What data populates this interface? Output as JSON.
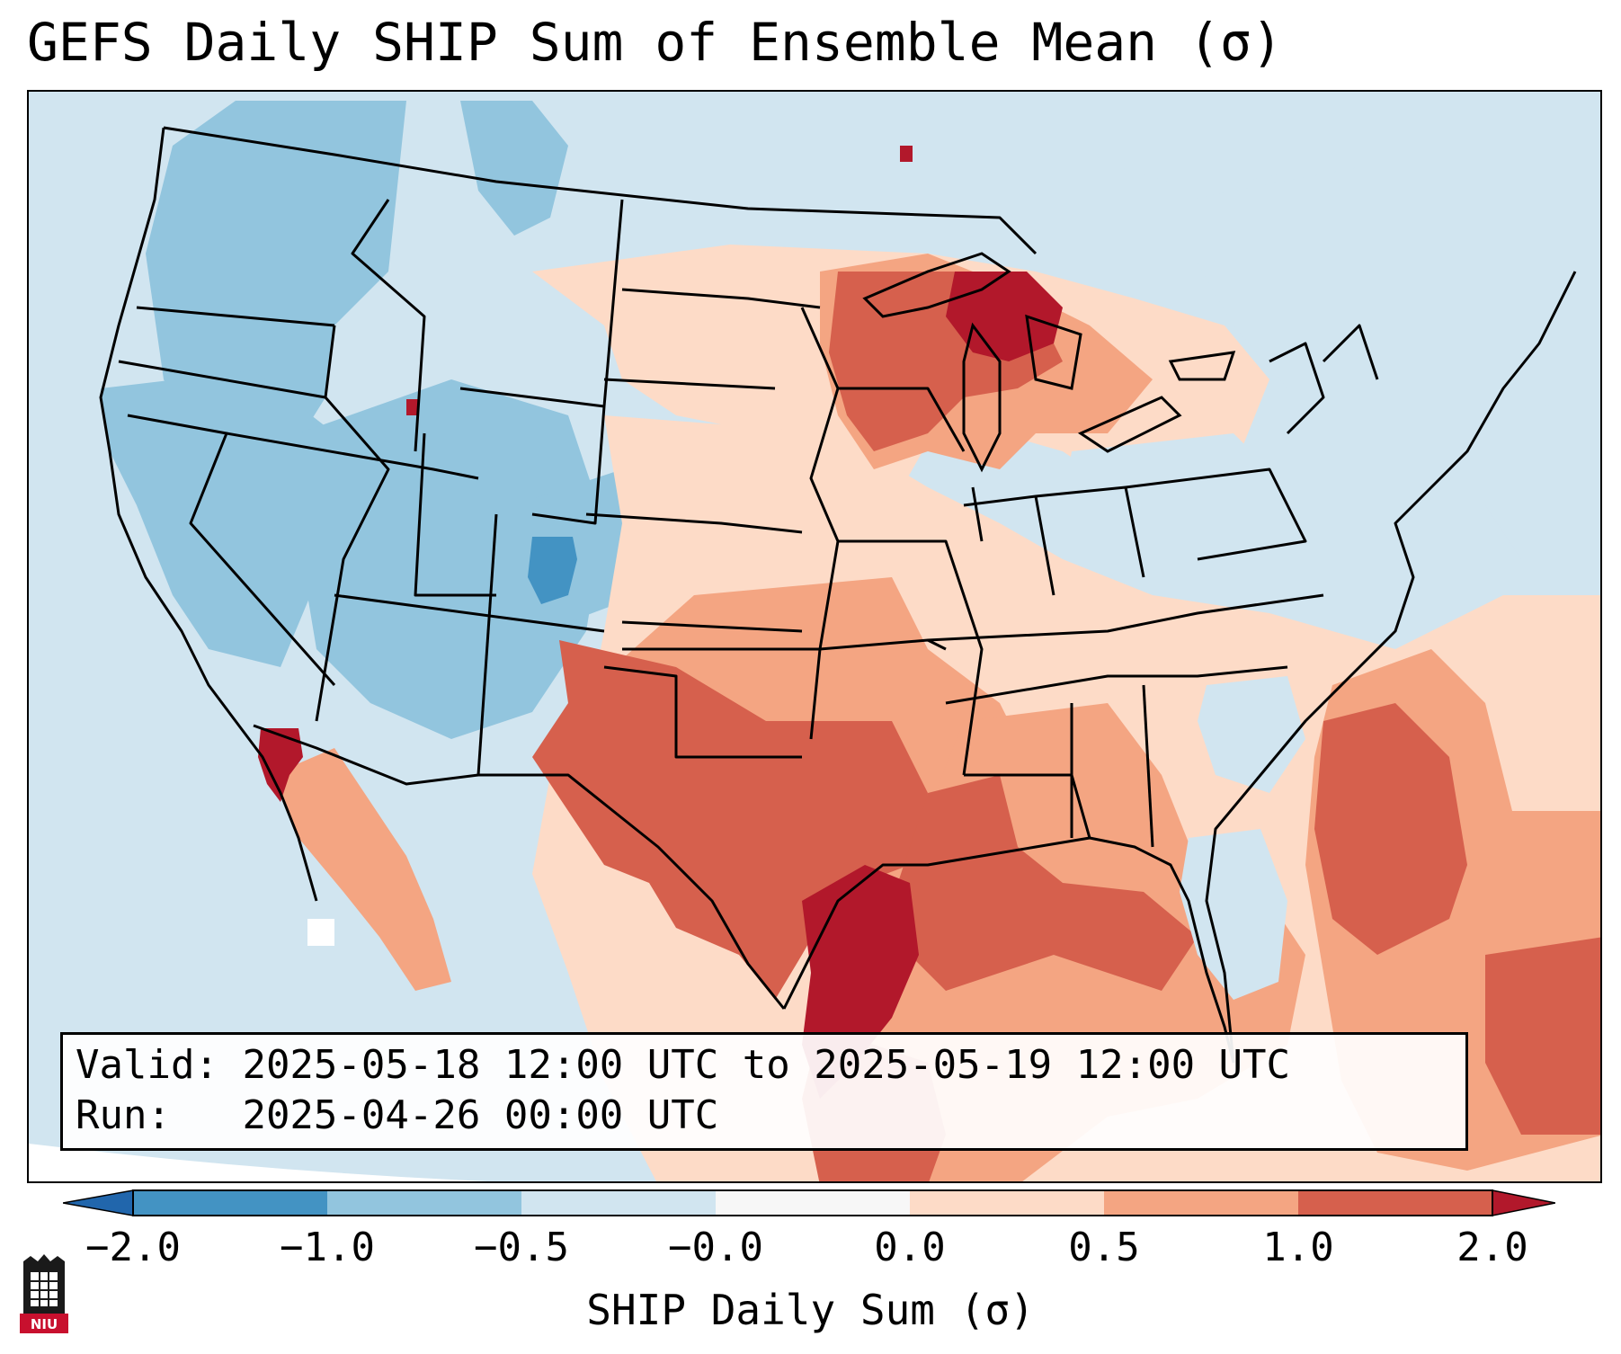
{
  "title": "GEFS Daily SHIP Sum of Ensemble Mean (σ)",
  "info": {
    "valid_label": "Valid:",
    "valid_value": "2025-05-18 12:00 UTC to 2025-05-19 12:00 UTC",
    "run_label": "Run:",
    "run_value": "2025-04-26 00:00 UTC"
  },
  "colorbar": {
    "label": "SHIP Daily Sum (σ)",
    "ticks": [
      "−2.0",
      "−1.0",
      "−0.5",
      "−0.0",
      "0.0",
      "0.5",
      "1.0",
      "2.0"
    ],
    "colors": {
      "below_min": "#2166ac",
      "c1": "#4393c3",
      "c2": "#92c5de",
      "c3": "#d1e5f0",
      "c4": "#f7f7f7",
      "c5": "#fddbc7",
      "c6": "#f4a582",
      "c7": "#d6604d",
      "above_max": "#b2182b"
    }
  },
  "map": {
    "region": "Continental United States",
    "projection_shown": "conic",
    "field": "SHIP daily sum anomaly (sigma)"
  },
  "logo": {
    "text": "NIU",
    "icon": "niu-castle-logo"
  }
}
